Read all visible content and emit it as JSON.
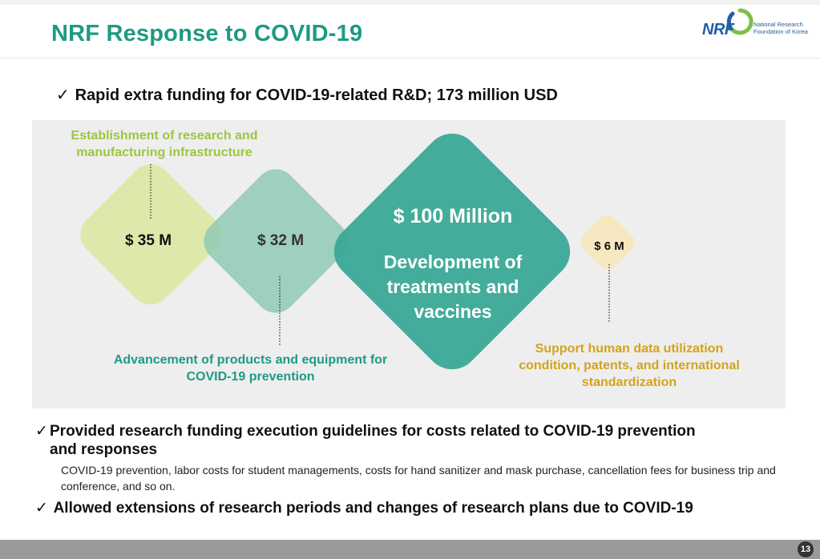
{
  "title": "NRF Response to COVID-19",
  "logo": {
    "mark": "NRF",
    "line1": "National Research",
    "line2": "Foundation of Korea"
  },
  "bullets": {
    "check": "✓",
    "first": "Rapid extra funding for COVID-19-related R&D; 173 million USD",
    "second": "Provided research funding execution guidelines for costs related to COVID-19 prevention and responses",
    "second_detail": "COVID-19 prevention, labor costs for student managements, costs for hand sanitizer and mask purchase, cancellation fees for business trip and conference, and so on.",
    "third": "Allowed extensions of research periods and changes of research plans due to COVID-19"
  },
  "funding": {
    "infra": {
      "amount": "$ 35 M",
      "label": "Establishment of research and manufacturing infrastructure",
      "color": "#dbe8a6"
    },
    "products": {
      "amount": "$ 32 M",
      "label": "Advancement of products and equipment for COVID-19 prevention",
      "color": "#8ec8b2"
    },
    "treatments": {
      "amount": "$ 100 Million",
      "label": "Development of treatments and vaccines",
      "color": "#3aa895"
    },
    "data": {
      "amount": "$ 6 M",
      "label": "Support human data utilization condition, patents, and international standardization",
      "color": "#f6e8bd"
    }
  },
  "colors": {
    "title": "#1e9a82",
    "green_label": "#9dc63c",
    "teal_label": "#1e9a82",
    "gold_label": "#d4a21a"
  },
  "page_number": "13"
}
